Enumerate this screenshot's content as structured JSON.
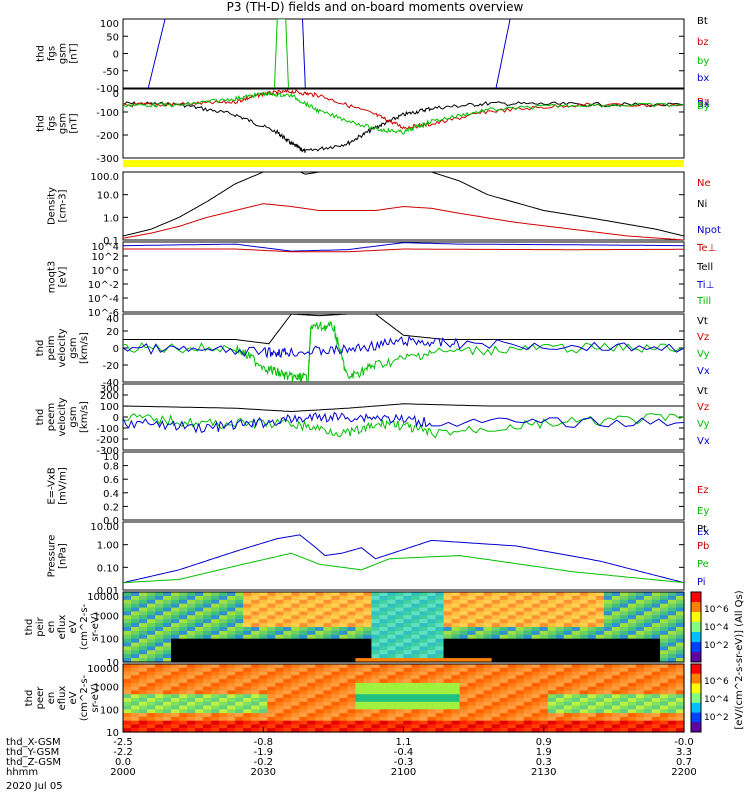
{
  "title": "P3 (TH-D) fields and on-board moments overview",
  "date_label": "2020 Jul 05",
  "colorbar_label": "[eV/(cm^2-s-sr-eV)] (All Qs)",
  "colorbar_ticks": [
    "10^6",
    "10^4",
    "10^2"
  ],
  "bottom_axis": {
    "rows": [
      {
        "label": "thd_X-GSM",
        "values": [
          "-2.5",
          "-0.8",
          "1.1",
          "0.9",
          "-0.0"
        ]
      },
      {
        "label": "thd_Y-GSM",
        "values": [
          "-2.2",
          "-1.9",
          "-0.4",
          "1.9",
          "3.3"
        ]
      },
      {
        "label": "thd_Z-GSM",
        "values": [
          "0.0",
          "-0.2",
          "-0.3",
          "0.3",
          "0.7"
        ]
      },
      {
        "label": "hhmm",
        "values": [
          "2000",
          "2030",
          "2100",
          "2130",
          "2200"
        ]
      }
    ]
  },
  "chart_data": [
    {
      "type": "line",
      "panel": "fgs_gsm",
      "ylabel": [
        "thd",
        "fgs",
        "gsm",
        "[nT]"
      ],
      "ylim": [
        -100,
        100
      ],
      "yticks": [
        "100",
        "50",
        "0",
        "-50",
        "-100"
      ],
      "legend": [
        {
          "name": "Bt",
          "color": "#000000"
        },
        {
          "name": "bz",
          "color": "#d00000"
        },
        {
          "name": "by",
          "color": "#00c000"
        },
        {
          "name": "bx",
          "color": "#0000d0"
        }
      ],
      "x_range": [
        "2000",
        "2200"
      ],
      "series": [
        {
          "name": "bx",
          "x": [
            2009,
            2012,
            2015
          ],
          "y": [
            -100,
            0,
            100
          ]
        },
        {
          "name": "by",
          "x": [
            2054,
            2055,
            2058,
            2059
          ],
          "y": [
            -100,
            100,
            100,
            -100
          ]
        },
        {
          "name": "bx2",
          "x": [
            2064,
            2065
          ],
          "y": [
            100,
            -100
          ]
        },
        {
          "name": "bx3",
          "x": [
            2133,
            2138
          ],
          "y": [
            -100,
            100
          ]
        }
      ]
    },
    {
      "type": "line",
      "panel": "fgs_gsm_full",
      "ylabel": [
        "thd",
        "fgs",
        "gsm",
        "[nT]"
      ],
      "ylim": [
        -330,
        100
      ],
      "yticks": [
        "0",
        "-100",
        "-200",
        "-300"
      ],
      "legend": [
        {
          "name": "Bz",
          "color": "#d00000"
        },
        {
          "name": "Bx",
          "color": "#0000d0"
        },
        {
          "name": "By",
          "color": "#00c000"
        }
      ],
      "series": [
        {
          "name": "Bt",
          "x": [
            2000,
            2020,
            2040,
            2055,
            2060,
            2065,
            2080,
            2090,
            2100,
            2110,
            2130,
            2160,
            2200
          ],
          "y": [
            10,
            5,
            -60,
            -170,
            -240,
            -290,
            -240,
            -140,
            -60,
            -20,
            10,
            5,
            0
          ]
        },
        {
          "name": "Bz",
          "x": [
            2000,
            2020,
            2040,
            2050,
            2060,
            2070,
            2090,
            2100,
            2110,
            2130,
            2160,
            2200
          ],
          "y": [
            0,
            5,
            20,
            70,
            85,
            60,
            -60,
            -140,
            -120,
            -40,
            0,
            0
          ]
        },
        {
          "name": "By",
          "x": [
            2000,
            2020,
            2040,
            2050,
            2060,
            2070,
            2090,
            2100,
            2110,
            2130,
            2160,
            2200
          ],
          "y": [
            0,
            0,
            40,
            70,
            60,
            -40,
            -150,
            -170,
            -100,
            -30,
            0,
            0
          ]
        }
      ]
    },
    {
      "type": "line",
      "panel": "density",
      "ylabel": [
        "Density",
        "[cm-3]"
      ],
      "ylim": [
        0.1,
        100
      ],
      "log": true,
      "yticks": [
        "100.0",
        "10.0",
        "1.0",
        "0.1"
      ],
      "legend": [
        {
          "name": "Ne",
          "color": "#d00000"
        },
        {
          "name": "Ni",
          "color": "#000000"
        },
        {
          "name": "Npot",
          "color": "#0000d0"
        }
      ],
      "series": [
        {
          "name": "Ni",
          "x": [
            2000,
            2010,
            2020,
            2030,
            2040,
            2050,
            2055,
            2060,
            2065,
            2070,
            2090,
            2100,
            2110,
            2120,
            2130,
            2150,
            2170,
            2190,
            2200
          ],
          "y": [
            0.15,
            0.3,
            1.0,
            5,
            30,
            100,
            120,
            150,
            80,
            100,
            100,
            150,
            100,
            40,
            10,
            2,
            0.8,
            0.3,
            0.15
          ]
        },
        {
          "name": "Ne",
          "x": [
            2000,
            2010,
            2020,
            2030,
            2040,
            2050,
            2060,
            2070,
            2090,
            2100,
            2110,
            2120,
            2140,
            2160,
            2180,
            2200
          ],
          "y": [
            0.12,
            0.2,
            0.4,
            1.0,
            2.0,
            4.0,
            3.0,
            2.0,
            2.0,
            3.0,
            2.5,
            1.5,
            0.6,
            0.3,
            0.15,
            0.1
          ]
        }
      ]
    },
    {
      "type": "line",
      "panel": "moqt3",
      "ylabel": [
        "moqt3",
        "[eV]"
      ],
      "ylim": [
        1e-06,
        10000.0
      ],
      "log": true,
      "yticks": [
        "10^4",
        "10^2",
        "10^0",
        "10^-2",
        "10^-4",
        "10^-6"
      ],
      "legend": [
        {
          "name": "Te⊥",
          "color": "#d00000"
        },
        {
          "name": "Tell",
          "color": "#000000"
        },
        {
          "name": "Ti⊥",
          "color": "#0000d0"
        },
        {
          "name": "Till",
          "color": "#00c000"
        }
      ],
      "series": [
        {
          "name": "Ti",
          "x": [
            2000,
            2040,
            2060,
            2080,
            2100,
            2120,
            2160,
            2200
          ],
          "y": [
            3000,
            5000,
            500,
            800,
            8000,
            5000,
            4000,
            3000
          ]
        },
        {
          "name": "Te",
          "x": [
            2000,
            2040,
            2060,
            2080,
            2100,
            2120,
            2160,
            2200
          ],
          "y": [
            1000,
            1000,
            400,
            400,
            1000,
            900,
            800,
            900
          ]
        }
      ]
    },
    {
      "type": "line",
      "panel": "peim_velocity",
      "ylabel": [
        "thd",
        "peim",
        "velocity",
        "gsm",
        "[km/s]"
      ],
      "ylim": [
        -40,
        40
      ],
      "yticks": [
        "40",
        "20",
        "0",
        "-20",
        "-40"
      ],
      "legend": [
        {
          "name": "Vt",
          "color": "#000000"
        },
        {
          "name": "Vz",
          "color": "#d00000"
        },
        {
          "name": "Vy",
          "color": "#00c000"
        },
        {
          "name": "Vx",
          "color": "#0000d0"
        }
      ],
      "series": [
        {
          "name": "Vt",
          "x": [
            2000,
            2040,
            2052,
            2060,
            2070,
            2080,
            2090,
            2100,
            2115,
            2200
          ],
          "y": [
            10,
            10,
            5,
            40,
            38,
            40,
            40,
            15,
            10,
            10
          ]
        },
        {
          "name": "Vy",
          "x": [
            2000,
            2040,
            2052,
            2060,
            2066,
            2067,
            2075,
            2080,
            2090,
            2110,
            2150,
            2200
          ],
          "y": [
            0,
            0,
            -25,
            -35,
            -35,
            25,
            25,
            -35,
            -20,
            -5,
            0,
            0
          ]
        },
        {
          "name": "Vx",
          "x": [
            2000,
            2050,
            2060,
            2080,
            2100,
            2120,
            2200
          ],
          "y": [
            0,
            -5,
            -5,
            -2,
            8,
            5,
            0
          ]
        }
      ]
    },
    {
      "type": "line",
      "panel": "peem_velocity",
      "ylabel": [
        "thd",
        "peem",
        "velocity",
        "gsm",
        "[km/s]"
      ],
      "ylim": [
        -300,
        300
      ],
      "yticks": [
        "300",
        "200",
        "100",
        "0",
        "-100",
        "-200",
        "-300"
      ],
      "legend": [
        {
          "name": "Vt",
          "color": "#000000"
        },
        {
          "name": "Vz",
          "color": "#d00000"
        },
        {
          "name": "Vy",
          "color": "#00c000"
        },
        {
          "name": "Vx",
          "color": "#0000d0"
        }
      ],
      "series": [
        {
          "name": "Vt",
          "x": [
            2000,
            2040,
            2060,
            2080,
            2100,
            2130,
            2200
          ],
          "y": [
            100,
            80,
            50,
            80,
            120,
            100,
            100
          ]
        },
        {
          "name": "Vy",
          "x": [
            2000,
            2030,
            2060,
            2080,
            2095,
            2110,
            2150,
            2200
          ],
          "y": [
            0,
            -60,
            -60,
            -150,
            -50,
            -150,
            -60,
            0
          ]
        },
        {
          "name": "Vx",
          "x": [
            2000,
            2030,
            2050,
            2070,
            2090,
            2110,
            2200
          ],
          "y": [
            -50,
            -100,
            -50,
            0,
            0,
            -50,
            -50
          ]
        }
      ]
    },
    {
      "type": "line",
      "panel": "efield",
      "ylabel": [
        "E=-VxB",
        "[mV/m]"
      ],
      "ylim": [
        0,
        1
      ],
      "yticks": [
        "1.0",
        "0.8",
        "0.6",
        "0.4",
        "0.2",
        "0.0"
      ],
      "legend": [
        {
          "name": "Ez",
          "color": "#d00000"
        },
        {
          "name": "Ey",
          "color": "#00c000"
        },
        {
          "name": "Ex",
          "color": "#0000d0"
        }
      ],
      "series": []
    },
    {
      "type": "line",
      "panel": "pressure",
      "ylabel": [
        "Pressure",
        "[nPa]"
      ],
      "ylim": [
        0.004,
        20
      ],
      "log": true,
      "yticks": [
        "10.00",
        "1.00",
        "0.10",
        "0.01"
      ],
      "legend": [
        {
          "name": "Pt",
          "color": "#000000"
        },
        {
          "name": "Pb",
          "color": "#d00000"
        },
        {
          "name": "Pe",
          "color": "#00c000"
        },
        {
          "name": "Pi",
          "color": "#0000d0"
        }
      ],
      "series": [
        {
          "name": "Pi",
          "x": [
            2000,
            2020,
            2040,
            2055,
            2063,
            2068,
            2072,
            2078,
            2085,
            2090,
            2110,
            2140,
            2170,
            2200
          ],
          "y": [
            0.01,
            0.05,
            0.5,
            2.5,
            4.0,
            1.0,
            0.3,
            0.4,
            0.8,
            0.2,
            2.0,
            1.0,
            0.15,
            0.01
          ]
        },
        {
          "name": "Pe",
          "x": [
            2000,
            2020,
            2040,
            2060,
            2070,
            2085,
            2095,
            2120,
            2160,
            2200
          ],
          "y": [
            0.01,
            0.015,
            0.08,
            0.4,
            0.1,
            0.05,
            0.2,
            0.3,
            0.04,
            0.01
          ]
        }
      ]
    },
    {
      "type": "heatmap",
      "panel": "peir",
      "ylabel": [
        "thd",
        "peir",
        "en",
        "eflux",
        "eV",
        "(cm^2-s-",
        "sr-eV)"
      ],
      "yticks": [
        "10000",
        "1000",
        "100",
        "10"
      ]
    },
    {
      "type": "heatmap",
      "panel": "peer",
      "ylabel": [
        "thd",
        "peer",
        "en",
        "eflux",
        "eV",
        "(cm^2-s-",
        "sr-eV)"
      ],
      "yticks": [
        "10000",
        "1000",
        "100",
        "10"
      ]
    }
  ]
}
